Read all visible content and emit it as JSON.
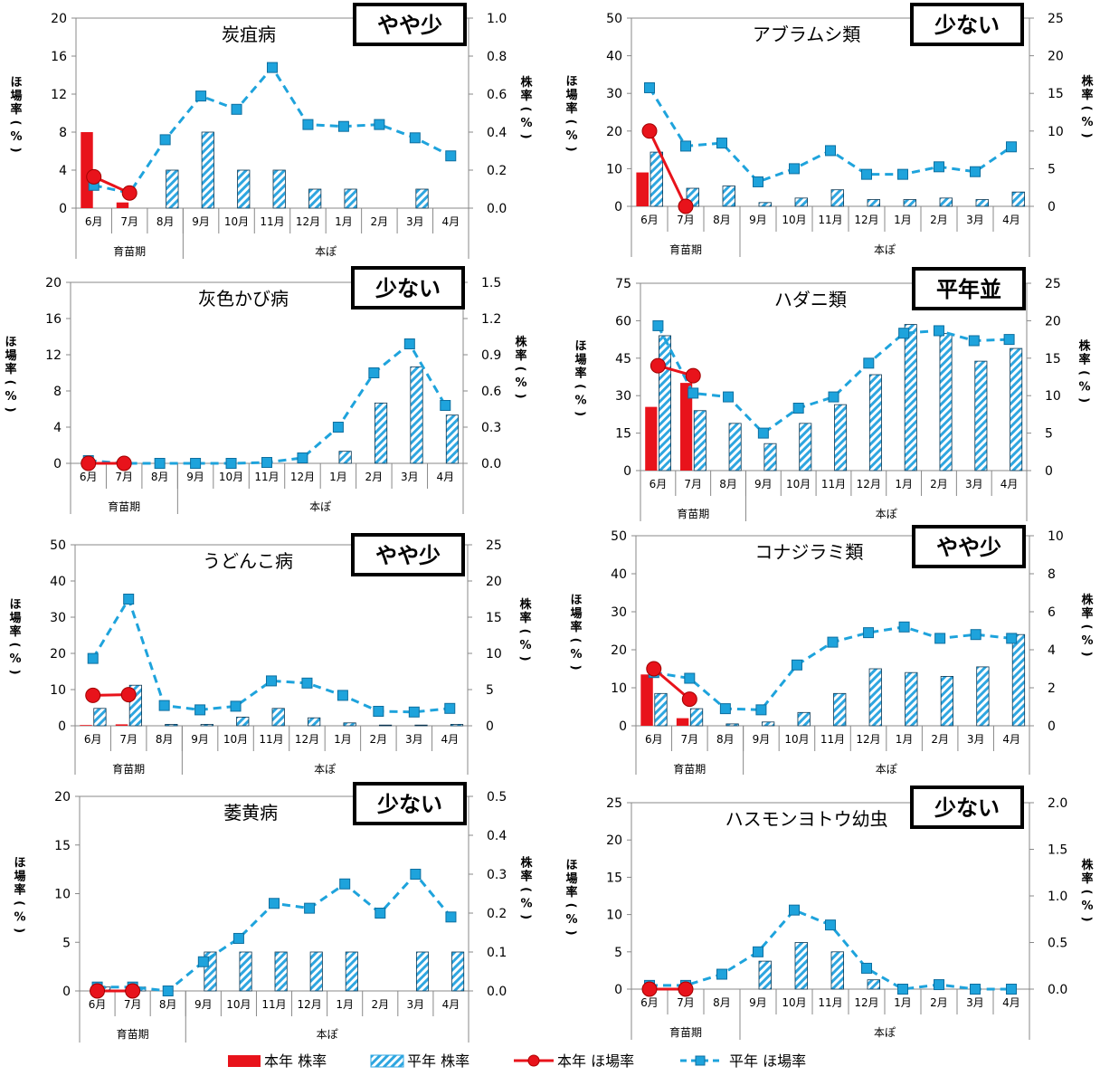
{
  "colors": {
    "current": "#e8131b",
    "average_line": "#1ea3dc",
    "average_marker": "#1ea3dc",
    "hatch": "#2ea6e0",
    "axis": "#888888",
    "grid": "#bbbbbb"
  },
  "legend": [
    {
      "label": "本年 株率",
      "kind": "red-bar"
    },
    {
      "label": "平年 株率",
      "kind": "hatch-bar"
    },
    {
      "label": "本年 ほ場率",
      "kind": "red-line"
    },
    {
      "label": "平年 ほ場率",
      "kind": "blue-line"
    }
  ],
  "chart_data": [
    {
      "type": "bar",
      "title": "炭疽病",
      "badge": "やや少",
      "categories": [
        "6月",
        "7月",
        "8月",
        "9月",
        "10月",
        "11月",
        "12月",
        "1月",
        "2月",
        "3月",
        "4月"
      ],
      "groups": [
        {
          "label": "育苗期",
          "count": 3
        },
        {
          "label": "本ぽ",
          "count": 8
        }
      ],
      "ylabel_left": "ほ場率（%）",
      "ylabel_right": "株率（%）",
      "left_ticks": [
        "0",
        "4",
        "8",
        "12",
        "16",
        "20"
      ],
      "right_ticks": [
        "0.0",
        "0.2",
        "0.4",
        "0.6",
        "0.8",
        "1.0"
      ],
      "ylim_left": [
        0,
        20
      ],
      "ylim_right": [
        0,
        1.0
      ],
      "series": [
        {
          "name": "本年 株率",
          "axis": "right",
          "kind": "bar",
          "values": [
            0.4,
            0.03,
            null,
            null,
            null,
            null,
            null,
            null,
            null,
            null,
            null
          ]
        },
        {
          "name": "平年 株率",
          "axis": "right",
          "kind": "hatch",
          "values": [
            null,
            null,
            0.2,
            0.4,
            0.2,
            0.2,
            0.1,
            0.1,
            null,
            0.1,
            null
          ]
        },
        {
          "name": "本年 ほ場率",
          "axis": "left",
          "kind": "line",
          "values": [
            3.3,
            1.6,
            null,
            null,
            null,
            null,
            null,
            null,
            null,
            null,
            null
          ]
        },
        {
          "name": "平年 ほ場率",
          "axis": "left",
          "kind": "dash",
          "values": [
            2.4,
            1.6,
            7.2,
            11.8,
            10.4,
            14.8,
            8.8,
            8.6,
            8.8,
            7.4,
            5.5
          ]
        }
      ]
    },
    {
      "type": "bar",
      "title": "アブラムシ類",
      "badge": "少ない",
      "categories": [
        "6月",
        "7月",
        "8月",
        "9月",
        "10月",
        "11月",
        "12月",
        "1月",
        "2月",
        "3月",
        "4月"
      ],
      "groups": [
        {
          "label": "育苗期",
          "count": 3
        },
        {
          "label": "本ぽ",
          "count": 8
        }
      ],
      "ylabel_left": "ほ場率（%）",
      "ylabel_right": "株率（%）",
      "left_ticks": [
        "0",
        "10",
        "20",
        "30",
        "40",
        "50"
      ],
      "right_ticks": [
        "0",
        "5",
        "10",
        "15",
        "20",
        "25"
      ],
      "ylim_left": [
        0,
        50
      ],
      "ylim_right": [
        0,
        25
      ],
      "series": [
        {
          "name": "本年 株率",
          "axis": "right",
          "kind": "bar",
          "values": [
            4.5,
            0.0,
            null,
            null,
            null,
            null,
            null,
            null,
            null,
            null,
            null
          ]
        },
        {
          "name": "平年 株率",
          "axis": "right",
          "kind": "hatch",
          "values": [
            7.2,
            2.4,
            2.7,
            0.5,
            1.1,
            2.2,
            0.9,
            0.9,
            1.1,
            0.9,
            1.9
          ]
        },
        {
          "name": "本年 ほ場率",
          "axis": "left",
          "kind": "line",
          "values": [
            20,
            0,
            null,
            null,
            null,
            null,
            null,
            null,
            null,
            null,
            null
          ]
        },
        {
          "name": "平年 ほ場率",
          "axis": "left",
          "kind": "dash",
          "values": [
            31.5,
            16,
            16.8,
            6.5,
            10,
            14.8,
            8.5,
            8.5,
            10.5,
            9.2,
            15.8
          ]
        }
      ]
    },
    {
      "type": "bar",
      "title": "灰色かび病",
      "badge": "少ない",
      "categories": [
        "6月",
        "7月",
        "8月",
        "9月",
        "10月",
        "11月",
        "12月",
        "1月",
        "2月",
        "3月",
        "4月"
      ],
      "groups": [
        {
          "label": "育苗期",
          "count": 3
        },
        {
          "label": "本ぽ",
          "count": 8
        }
      ],
      "ylabel_left": "ほ場率（%）",
      "ylabel_right": "株率（%）",
      "left_ticks": [
        "0",
        "4",
        "8",
        "12",
        "16",
        "20"
      ],
      "right_ticks": [
        "0.0",
        "0.3",
        "0.6",
        "0.9",
        "1.2",
        "1.5"
      ],
      "ylim_left": [
        0,
        20
      ],
      "ylim_right": [
        0,
        1.5
      ],
      "series": [
        {
          "name": "本年 株率",
          "axis": "right",
          "kind": "bar",
          "values": [
            0,
            0,
            null,
            null,
            null,
            null,
            null,
            null,
            null,
            null,
            null
          ]
        },
        {
          "name": "平年 株率",
          "axis": "right",
          "kind": "hatch",
          "values": [
            0.0,
            0.0,
            0.0,
            0.0,
            0.0,
            0.0,
            0.0,
            0.1,
            0.5,
            0.8,
            0.4
          ]
        },
        {
          "name": "本年 ほ場率",
          "axis": "left",
          "kind": "line",
          "values": [
            0,
            0,
            null,
            null,
            null,
            null,
            null,
            null,
            null,
            null,
            null
          ]
        },
        {
          "name": "平年 ほ場率",
          "axis": "left",
          "kind": "dash",
          "values": [
            0.3,
            0.0,
            0.0,
            0.0,
            0.0,
            0.1,
            0.6,
            4.0,
            10.0,
            13.2,
            6.4
          ]
        }
      ]
    },
    {
      "type": "bar",
      "title": "ハダニ類",
      "badge": "平年並",
      "categories": [
        "6月",
        "7月",
        "8月",
        "9月",
        "10月",
        "11月",
        "12月",
        "1月",
        "2月",
        "3月",
        "4月"
      ],
      "groups": [
        {
          "label": "育苗期",
          "count": 3
        },
        {
          "label": "本ぽ",
          "count": 8
        }
      ],
      "ylabel_left": "ほ場率（%）",
      "ylabel_right": "株率（%）",
      "left_ticks": [
        "0",
        "15",
        "30",
        "45",
        "60",
        "75"
      ],
      "right_ticks": [
        "0",
        "5",
        "10",
        "15",
        "20",
        "25"
      ],
      "ylim_left": [
        0,
        75
      ],
      "ylim_right": [
        0,
        25
      ],
      "series": [
        {
          "name": "本年 株率",
          "axis": "right",
          "kind": "bar",
          "values": [
            8.5,
            11.7,
            null,
            null,
            null,
            null,
            null,
            null,
            null,
            null,
            null
          ]
        },
        {
          "name": "平年 株率",
          "axis": "right",
          "kind": "hatch",
          "values": [
            18,
            8,
            6.3,
            3.6,
            6.3,
            8.8,
            12.8,
            19.5,
            18.3,
            14.6,
            16.3
          ]
        },
        {
          "name": "本年 ほ場率",
          "axis": "left",
          "kind": "line",
          "values": [
            42,
            38,
            null,
            null,
            null,
            null,
            null,
            null,
            null,
            null,
            null
          ]
        },
        {
          "name": "平年 ほ場率",
          "axis": "left",
          "kind": "dash",
          "values": [
            58,
            31,
            29.5,
            15,
            25,
            29.5,
            43,
            55,
            56,
            52,
            52.5
          ]
        }
      ]
    },
    {
      "type": "bar",
      "title": "うどんこ病",
      "badge": "やや少",
      "categories": [
        "6月",
        "7月",
        "8月",
        "9月",
        "10月",
        "11月",
        "12月",
        "1月",
        "2月",
        "3月",
        "4月"
      ],
      "groups": [
        {
          "label": "育苗期",
          "count": 3
        },
        {
          "label": "本ぽ",
          "count": 8
        }
      ],
      "ylabel_left": "ほ場率（%）",
      "ylabel_right": "株率（%）",
      "left_ticks": [
        "0",
        "10",
        "20",
        "30",
        "40",
        "50"
      ],
      "right_ticks": [
        "0",
        "5",
        "10",
        "15",
        "20",
        "25"
      ],
      "ylim_left": [
        0,
        50
      ],
      "ylim_right": [
        0,
        25
      ],
      "series": [
        {
          "name": "本年 株率",
          "axis": "right",
          "kind": "bar",
          "values": [
            0.1,
            0.2,
            null,
            null,
            null,
            null,
            null,
            null,
            null,
            null,
            null
          ]
        },
        {
          "name": "平年 株率",
          "axis": "right",
          "kind": "hatch",
          "values": [
            2.4,
            5.6,
            0.2,
            0.2,
            1.2,
            2.4,
            1.1,
            0.4,
            0.1,
            0.1,
            0.2
          ]
        },
        {
          "name": "本年 ほ場率",
          "axis": "left",
          "kind": "line",
          "values": [
            8.4,
            8.6,
            null,
            null,
            null,
            null,
            null,
            null,
            null,
            null,
            null
          ]
        },
        {
          "name": "平年 ほ場率",
          "axis": "left",
          "kind": "dash",
          "values": [
            18.6,
            35,
            5.6,
            4.4,
            5.4,
            12.4,
            11.8,
            8.4,
            4.0,
            3.8,
            4.8
          ]
        }
      ]
    },
    {
      "type": "bar",
      "title": "コナジラミ類",
      "badge": "やや少",
      "categories": [
        "6月",
        "7月",
        "8月",
        "9月",
        "10月",
        "11月",
        "12月",
        "1月",
        "2月",
        "3月",
        "4月"
      ],
      "groups": [
        {
          "label": "育苗期",
          "count": 3
        },
        {
          "label": "本ぽ",
          "count": 8
        }
      ],
      "ylabel_left": "ほ場率（%）",
      "ylabel_right": "株率（%）",
      "left_ticks": [
        "0",
        "10",
        "20",
        "30",
        "40",
        "50"
      ],
      "right_ticks": [
        "0",
        "2",
        "4",
        "6",
        "8",
        "10"
      ],
      "ylim_left": [
        0,
        50
      ],
      "ylim_right": [
        0,
        10
      ],
      "series": [
        {
          "name": "本年 株率",
          "axis": "right",
          "kind": "bar",
          "values": [
            2.7,
            0.4,
            null,
            null,
            null,
            null,
            null,
            null,
            null,
            null,
            null
          ]
        },
        {
          "name": "平年 株率",
          "axis": "right",
          "kind": "hatch",
          "values": [
            1.7,
            0.9,
            0.1,
            0.2,
            0.7,
            1.7,
            3.0,
            2.8,
            2.6,
            3.1,
            4.8
          ]
        },
        {
          "name": "本年 ほ場率",
          "axis": "left",
          "kind": "line",
          "values": [
            15,
            7,
            null,
            null,
            null,
            null,
            null,
            null,
            null,
            null,
            null
          ]
        },
        {
          "name": "平年 ほ場率",
          "axis": "left",
          "kind": "dash",
          "values": [
            14,
            12.5,
            4.5,
            4.2,
            16,
            22,
            24.5,
            26,
            23,
            24,
            23
          ]
        }
      ]
    },
    {
      "type": "bar",
      "title": "萎黄病",
      "badge": "少ない",
      "categories": [
        "6月",
        "7月",
        "8月",
        "9月",
        "10月",
        "11月",
        "12月",
        "1月",
        "2月",
        "3月",
        "4月"
      ],
      "groups": [
        {
          "label": "育苗期",
          "count": 3
        },
        {
          "label": "本ぽ",
          "count": 8
        }
      ],
      "ylabel_left": "ほ場率（%）",
      "ylabel_right": "株率（%）",
      "left_ticks": [
        "0",
        "5",
        "10",
        "15",
        "20"
      ],
      "right_ticks": [
        "0.0",
        "0.1",
        "0.2",
        "0.3",
        "0.4",
        "0.5"
      ],
      "ylim_left": [
        0,
        20
      ],
      "ylim_right": [
        0,
        0.5
      ],
      "series": [
        {
          "name": "本年 株率",
          "axis": "right",
          "kind": "bar",
          "values": [
            0,
            0,
            null,
            null,
            null,
            null,
            null,
            null,
            null,
            null,
            null
          ]
        },
        {
          "name": "平年 株率",
          "axis": "right",
          "kind": "hatch",
          "values": [
            0.01,
            0.01,
            0.0,
            0.1,
            0.1,
            0.1,
            0.1,
            0.1,
            0.0,
            0.1,
            0.1
          ]
        },
        {
          "name": "本年 ほ場率",
          "axis": "left",
          "kind": "line",
          "values": [
            0,
            0,
            null,
            null,
            null,
            null,
            null,
            null,
            null,
            null,
            null
          ]
        },
        {
          "name": "平年 ほ場率",
          "axis": "left",
          "kind": "dash",
          "values": [
            0.4,
            0.4,
            0,
            3.0,
            5.4,
            9.0,
            8.5,
            11.0,
            8.0,
            12.0,
            7.6
          ]
        }
      ]
    },
    {
      "type": "bar",
      "title": "ハスモンヨトウ幼虫",
      "badge": "少ない",
      "categories": [
        "6月",
        "7月",
        "8月",
        "9月",
        "10月",
        "11月",
        "12月",
        "1月",
        "2月",
        "3月",
        "4月"
      ],
      "groups": [
        {
          "label": "育苗期",
          "count": 3
        },
        {
          "label": "本ぽ",
          "count": 8
        }
      ],
      "ylabel_left": "ほ場率（%）",
      "ylabel_right": "株率（%）",
      "left_ticks": [
        "0",
        "5",
        "10",
        "15",
        "20",
        "25"
      ],
      "right_ticks": [
        "0.0",
        "0.5",
        "1.0",
        "1.5",
        "2.0"
      ],
      "ylim_left": [
        0,
        25
      ],
      "ylim_right": [
        0,
        2.0
      ],
      "series": [
        {
          "name": "本年 株率",
          "axis": "right",
          "kind": "bar",
          "values": [
            0,
            0,
            null,
            null,
            null,
            null,
            null,
            null,
            null,
            null,
            null
          ]
        },
        {
          "name": "平年 株率",
          "axis": "right",
          "kind": "hatch",
          "values": [
            0.0,
            0.0,
            0.0,
            0.3,
            0.5,
            0.4,
            0.1,
            0.0,
            0.0,
            0.0,
            0.0
          ]
        },
        {
          "name": "本年 ほ場率",
          "axis": "left",
          "kind": "line",
          "values": [
            0,
            0,
            null,
            null,
            null,
            null,
            null,
            null,
            null,
            null,
            null
          ]
        },
        {
          "name": "平年 ほ場率",
          "axis": "left",
          "kind": "dash",
          "values": [
            0.5,
            0.5,
            2.0,
            5.0,
            10.6,
            8.6,
            2.8,
            0.0,
            0.6,
            0.0,
            0.0
          ]
        }
      ]
    }
  ]
}
